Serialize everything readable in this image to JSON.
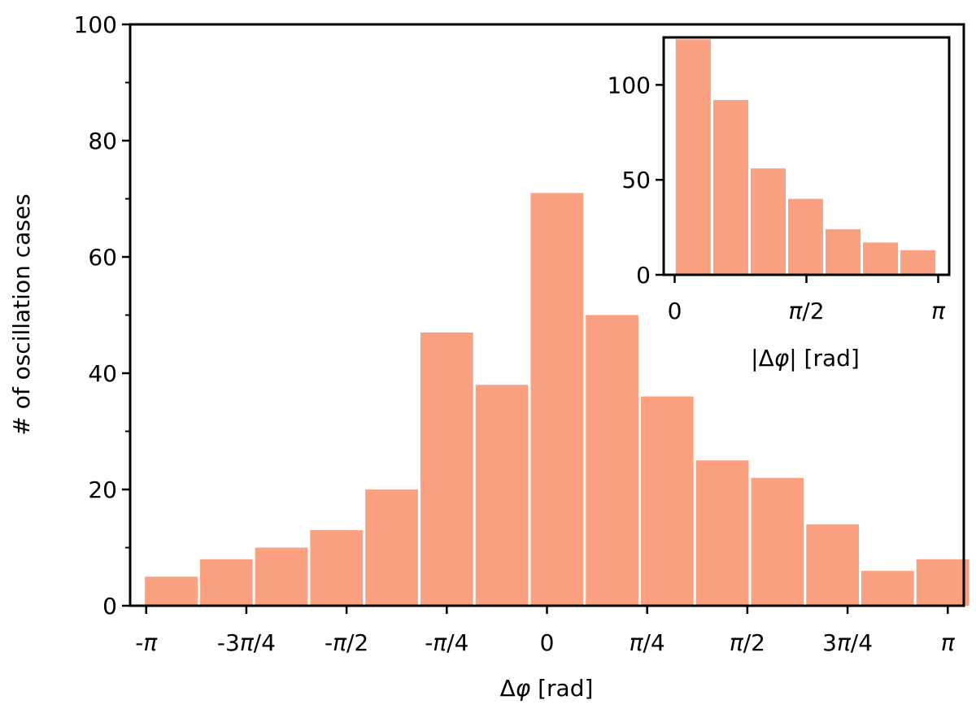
{
  "chart_data": [
    {
      "type": "bar",
      "bar_color": "#fca082",
      "xlabel": {
        "prefix": "Δ",
        "symbol": "φ",
        "suffix": " [rad]"
      },
      "ylabel": "# of oscillation cases",
      "ylim": [
        0,
        100
      ],
      "y_ticks": [
        "0",
        "20",
        "40",
        "60",
        "80",
        "100"
      ],
      "xlim": [
        -3.2673,
        3.2673
      ],
      "x_ticks": [
        {
          "pre": "-",
          "num": "π",
          "den": ""
        },
        {
          "pre": "-3",
          "num": "π",
          "den": "/4"
        },
        {
          "pre": "-",
          "num": "π",
          "den": "/2"
        },
        {
          "pre": "-",
          "num": "π",
          "den": "/4"
        },
        {
          "pre": "0",
          "num": "",
          "den": ""
        },
        {
          "pre": "",
          "num": "π",
          "den": "/4"
        },
        {
          "pre": "",
          "num": "π",
          "den": "/2"
        },
        {
          "pre": "3",
          "num": "π",
          "den": "/4"
        },
        {
          "pre": "",
          "num": "π",
          "den": ""
        }
      ],
      "bin_centers": [
        -2.9452,
        -2.5133,
        -2.0814,
        -1.6493,
        -1.2174,
        -0.7853,
        -0.3534,
        0.0785,
        0.5104,
        0.9425,
        1.3744,
        1.8064,
        2.2383,
        2.6703,
        3.1023
      ],
      "values": [
        5,
        8,
        10,
        13,
        20,
        47,
        38,
        71,
        50,
        36,
        25,
        22,
        14,
        6,
        8
      ]
    },
    {
      "type": "bar",
      "bar_color": "#fca082",
      "xlabel": {
        "prefix": "|Δ",
        "symbol": "φ",
        "suffix": "| [rad]"
      },
      "ylim": [
        0,
        125
      ],
      "y_ticks": [
        "0",
        "50",
        "100"
      ],
      "xlim": [
        -0.1309,
        3.2724
      ],
      "x_ticks": [
        {
          "pre": "0",
          "num": "",
          "den": ""
        },
        {
          "pre": "",
          "num": "π",
          "den": "/2"
        },
        {
          "pre": "",
          "num": "π",
          "den": ""
        }
      ],
      "bin_centers": [
        0.2218,
        0.6683,
        1.1146,
        1.561,
        2.0073,
        2.4538,
        2.9002
      ],
      "values": [
        124,
        92,
        56,
        40,
        24,
        17,
        13
      ]
    }
  ]
}
